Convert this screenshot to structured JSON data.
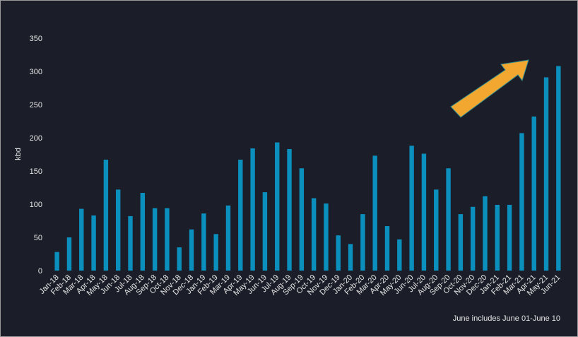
{
  "chart_data": {
    "type": "bar",
    "y_label": "kbd",
    "note": "June includes June 01-June 10",
    "color": "#0b8fbd",
    "ylim": [
      0,
      350
    ],
    "yticks": [
      0,
      50,
      100,
      150,
      200,
      250,
      300,
      350
    ],
    "categories": [
      "Jan-18",
      "Feb-18",
      "Mar-18",
      "Apr-18",
      "May-18",
      "Jun-18",
      "Jul-18",
      "Aug-18",
      "Sep-18",
      "Oct-18",
      "Nov-18",
      "Dec-18",
      "Jan-19",
      "Feb-19",
      "Mar-19",
      "Apr-19",
      "May-19",
      "Jun-19",
      "Jul-19",
      "Aug-19",
      "Sep-19",
      "Oct-19",
      "Nov-19",
      "Dec-19",
      "Jan-20",
      "Feb-20",
      "Mar-20",
      "Apr-20",
      "May-20",
      "Jun-20",
      "Jul-20",
      "Aug-20",
      "Sep-20",
      "Oct-20",
      "Nov-20",
      "Dec-20",
      "Jan-21",
      "Feb-21",
      "Mar-21",
      "Apr-21",
      "May-21",
      "Jun-21"
    ],
    "values": [
      28,
      50,
      93,
      83,
      167,
      122,
      82,
      117,
      94,
      94,
      35,
      62,
      86,
      55,
      98,
      167,
      184,
      118,
      193,
      183,
      154,
      109,
      101,
      53,
      40,
      85,
      173,
      67,
      47,
      188,
      176,
      122,
      154,
      85,
      96,
      112,
      99,
      99,
      207,
      232,
      291,
      308
    ]
  }
}
